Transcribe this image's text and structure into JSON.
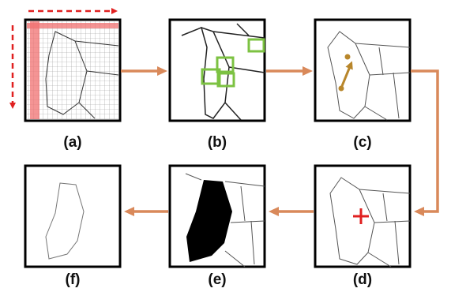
{
  "panels": [
    {
      "id": "a",
      "label": "(a)"
    },
    {
      "id": "b",
      "label": "(b)"
    },
    {
      "id": "c",
      "label": "(c)"
    },
    {
      "id": "d",
      "label": "(d)"
    },
    {
      "id": "e",
      "label": "(e)"
    },
    {
      "id": "f",
      "label": "(f)"
    }
  ],
  "colors": {
    "flow_arrow": "#d9895a",
    "scan_guide": "#e02020",
    "scan_band": "#f07070",
    "detection_box": "#7cc242",
    "direction_vector": "#b8862b",
    "seed_marker": "#e02020",
    "region_fill": "#000000",
    "panel_border": "#000000",
    "map_line": "#555555"
  },
  "icons": {
    "scan_arrows": "dashed-arrow",
    "flow": "arrow-right",
    "seed": "plus-marker"
  }
}
